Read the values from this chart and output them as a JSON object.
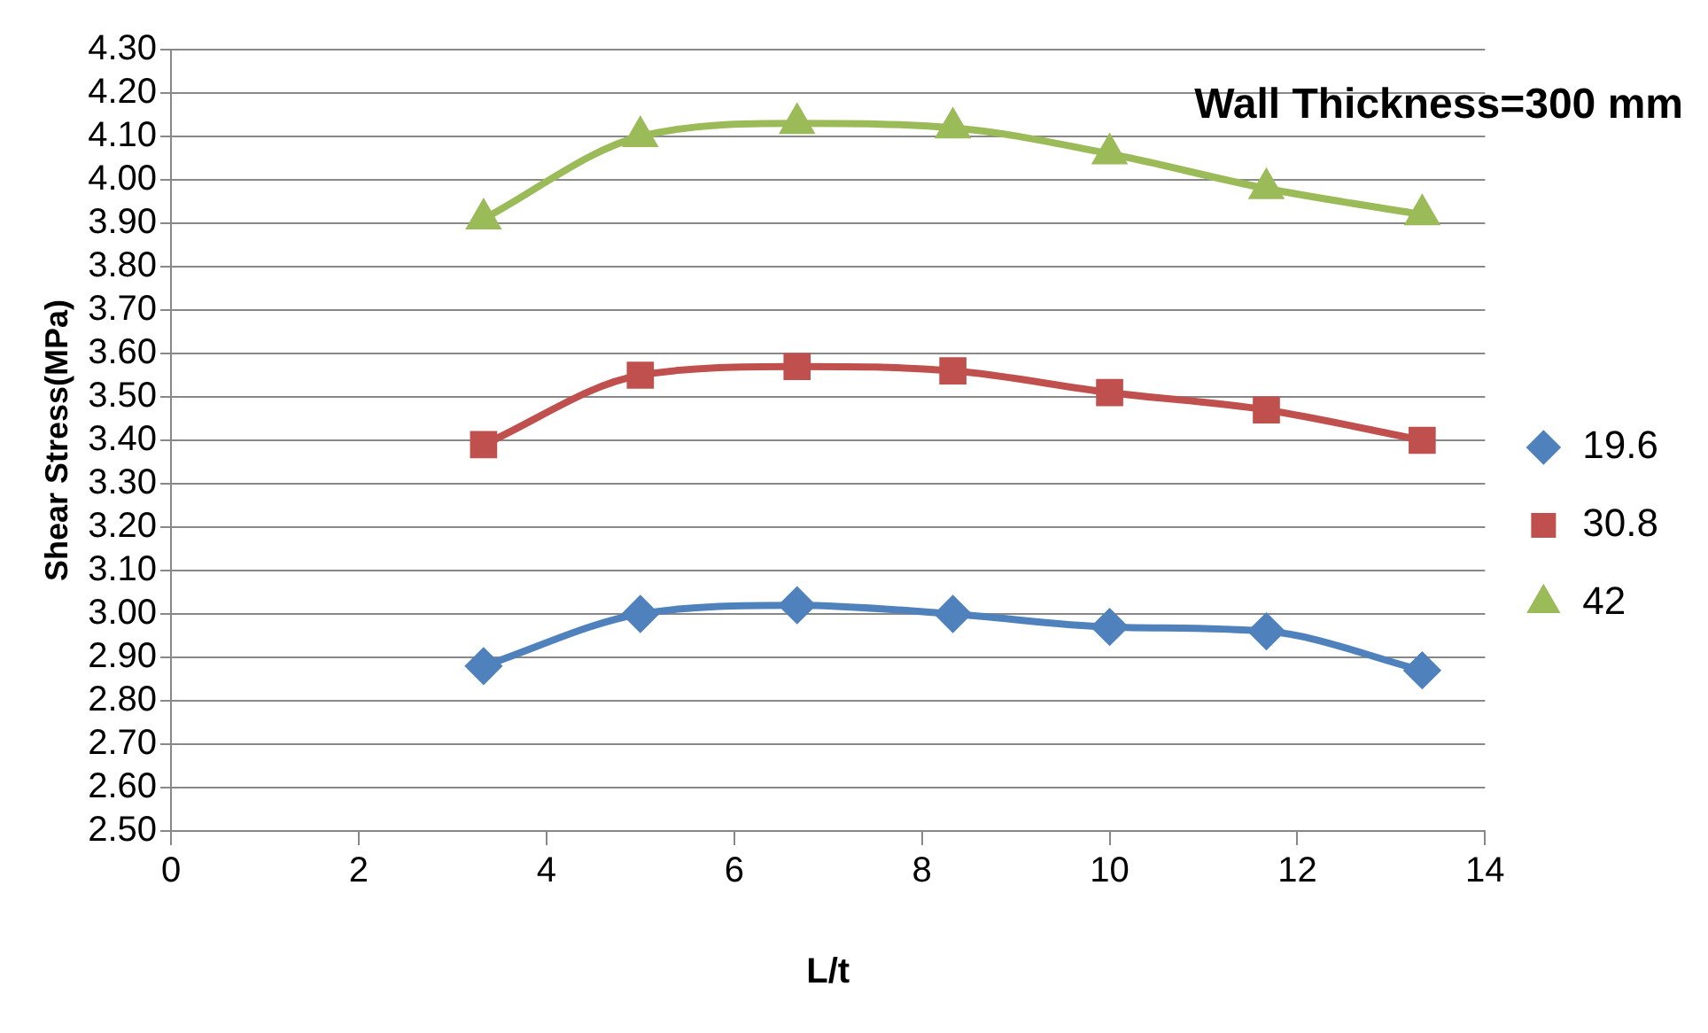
{
  "chart_data": {
    "type": "line",
    "title": "Wall Thickness=300 mm",
    "xlabel": "L/t",
    "ylabel": "Shear Stress(MPa)",
    "x": [
      3.33,
      5,
      6.67,
      8.33,
      10,
      11.67,
      13.33
    ],
    "series": [
      {
        "name": "19.6",
        "color": "#4f81bd",
        "marker": "diamond",
        "values": [
          2.88,
          3.0,
          3.02,
          3.0,
          2.97,
          2.96,
          2.87
        ]
      },
      {
        "name": "30.8",
        "color": "#c0504d",
        "marker": "square",
        "values": [
          3.39,
          3.55,
          3.57,
          3.56,
          3.51,
          3.47,
          3.4
        ]
      },
      {
        "name": "42",
        "color": "#9bbb59",
        "marker": "triangle",
        "values": [
          3.91,
          4.1,
          4.13,
          4.12,
          4.06,
          3.98,
          3.92
        ]
      }
    ],
    "xlim": [
      0,
      14
    ],
    "xticks": [
      0,
      2,
      4,
      6,
      8,
      10,
      12,
      14
    ],
    "ylim": [
      2.5,
      4.3
    ],
    "yticks": [
      {
        "value": 2.5,
        "label": "2.50"
      },
      {
        "value": 2.6,
        "label": "2.60"
      },
      {
        "value": 2.7,
        "label": "2.70"
      },
      {
        "value": 2.8,
        "label": "2.80"
      },
      {
        "value": 2.9,
        "label": "2.90"
      },
      {
        "value": 3.0,
        "label": "3.00"
      },
      {
        "value": 3.1,
        "label": "3.10"
      },
      {
        "value": 3.2,
        "label": "3.20"
      },
      {
        "value": 3.3,
        "label": "3.30"
      },
      {
        "value": 3.4,
        "label": "3.40"
      },
      {
        "value": 3.5,
        "label": "3.50"
      },
      {
        "value": 3.6,
        "label": "3.60"
      },
      {
        "value": 3.7,
        "label": "3.70"
      },
      {
        "value": 3.8,
        "label": "3.80"
      },
      {
        "value": 3.9,
        "label": "3.90"
      },
      {
        "value": 4.0,
        "label": "4.00"
      },
      {
        "value": 4.1,
        "label": "4.10"
      },
      {
        "value": 4.2,
        "label": "4.20"
      },
      {
        "value": 4.3,
        "label": "4.30"
      }
    ],
    "grid": "y",
    "legend": "right",
    "line_style": "solid"
  }
}
